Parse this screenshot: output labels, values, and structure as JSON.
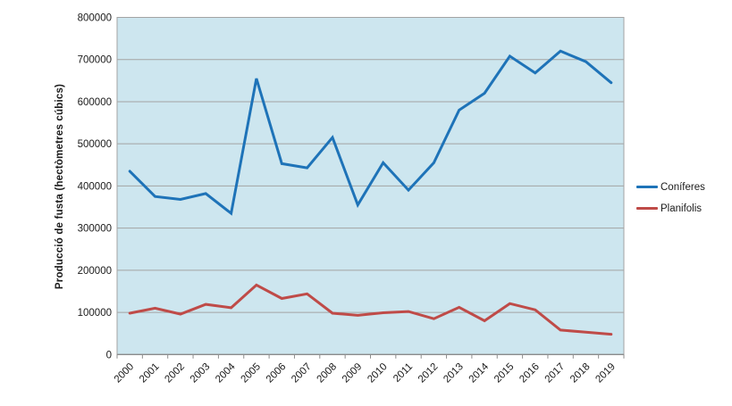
{
  "chart_data": {
    "type": "line",
    "title": "",
    "xlabel": "",
    "ylabel": "Producció de fusta (hectòmetres cúbics)",
    "categories": [
      "2000",
      "2001",
      "2002",
      "2003",
      "2004",
      "2005",
      "2006",
      "2007",
      "2008",
      "2009",
      "2010",
      "2011",
      "2012",
      "2013",
      "2014",
      "2015",
      "2016",
      "2017",
      "2018",
      "2019"
    ],
    "ylim": [
      0,
      800000
    ],
    "ytick_step": 100000,
    "yticks": [
      0,
      100000,
      200000,
      300000,
      400000,
      500000,
      600000,
      700000,
      800000
    ],
    "grid": true,
    "legend_position": "right",
    "plot_bg_color": "#cde6ef",
    "gridline_color": "#a3a3a3",
    "axis_line_color": "#8c8c8c",
    "axis_text_color": "#1a1a1a",
    "series": [
      {
        "name": "Coníferes",
        "color": "#1e73b8",
        "values": [
          435000,
          375000,
          368000,
          382000,
          335000,
          655000,
          453000,
          443000,
          515000,
          355000,
          455000,
          390000,
          455000,
          580000,
          620000,
          708000,
          668000,
          720000,
          695000,
          645000
        ]
      },
      {
        "name": "Planifolis",
        "color": "#bf4b48",
        "values": [
          98000,
          110000,
          96000,
          119000,
          111000,
          165000,
          133000,
          144000,
          98000,
          93000,
          99000,
          102000,
          85000,
          112000,
          80000,
          121000,
          106000,
          58000,
          53000,
          48000
        ]
      }
    ]
  }
}
